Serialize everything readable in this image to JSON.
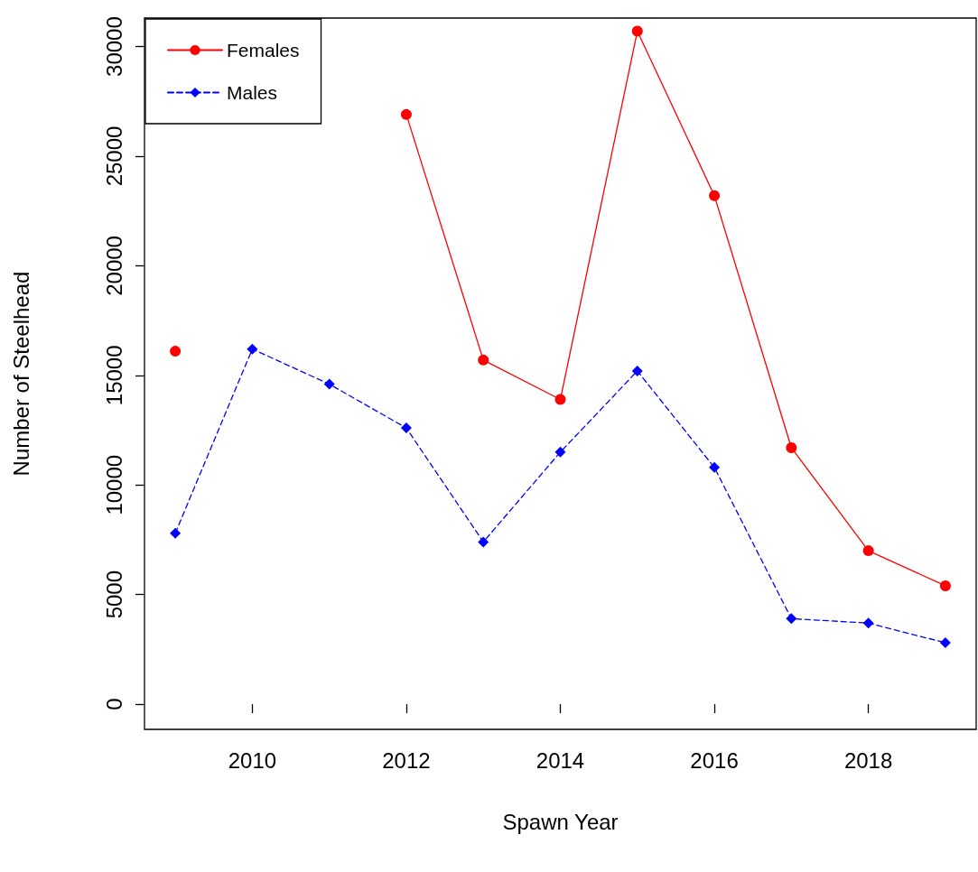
{
  "chart_data": {
    "type": "line",
    "xlabel": "Spawn Year",
    "ylabel": "Number of Steelhead",
    "x": [
      2009,
      2010,
      2011,
      2012,
      2013,
      2014,
      2015,
      2016,
      2017,
      2018,
      2019
    ],
    "series": [
      {
        "name": "Females",
        "color": "#ff0000",
        "marker": "circle",
        "line_style": "solid",
        "values": [
          16100,
          null,
          null,
          26900,
          15700,
          13900,
          30700,
          23200,
          11700,
          7000,
          5400
        ]
      },
      {
        "name": "Males",
        "color": "#0000ff",
        "marker": "diamond",
        "line_style": "dashed",
        "values": [
          7800,
          16200,
          14600,
          12600,
          7400,
          11500,
          15200,
          10800,
          3900,
          3700,
          2800
        ]
      }
    ],
    "xlim": [
      2008.6,
      2019.4
    ],
    "xticks": [
      2010,
      2012,
      2014,
      2016,
      2018
    ],
    "ylim": [
      -1150,
      31300
    ],
    "yticks": [
      0,
      5000,
      10000,
      15000,
      20000,
      25000,
      30000
    ],
    "legend": "top left",
    "grid": false
  }
}
